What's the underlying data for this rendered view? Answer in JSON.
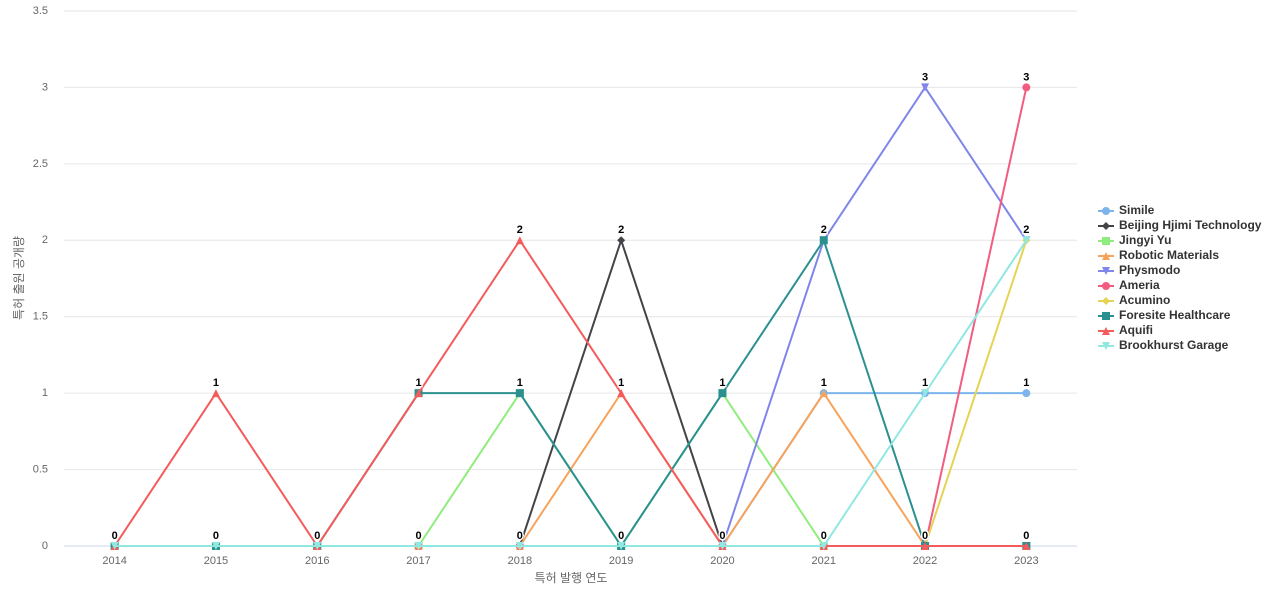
{
  "chart_data": {
    "type": "line",
    "x_label": "특허 발행 연도",
    "y_label": "특허 출원 공개량",
    "categories": [
      "2014",
      "2015",
      "2016",
      "2017",
      "2018",
      "2019",
      "2020",
      "2021",
      "2022",
      "2023"
    ],
    "ylim": [
      0,
      3.5
    ],
    "yticks": [
      0,
      0.5,
      1,
      1.5,
      2,
      2.5,
      3,
      3.5
    ],
    "grid": true,
    "legend": "right",
    "series": [
      {
        "name": "Simile",
        "color": "#7cb5ec",
        "values": [
          0,
          0,
          0,
          0,
          0,
          0,
          0,
          1,
          1,
          1
        ]
      },
      {
        "name": "Beijing Hjimi Technology",
        "color": "#434348",
        "values": [
          0,
          0,
          0,
          0,
          0,
          2,
          0,
          0,
          0,
          0
        ]
      },
      {
        "name": "Jingyi Yu",
        "color": "#90ed7d",
        "values": [
          0,
          0,
          0,
          0,
          1,
          0,
          1,
          0,
          0,
          0
        ]
      },
      {
        "name": "Robotic Materials",
        "color": "#f7a35c",
        "values": [
          0,
          0,
          0,
          0,
          0,
          1,
          0,
          1,
          0,
          0
        ]
      },
      {
        "name": "Physmodo",
        "color": "#8085e9",
        "values": [
          0,
          0,
          0,
          0,
          0,
          0,
          0,
          2,
          3,
          2
        ]
      },
      {
        "name": "Ameria",
        "color": "#f15c80",
        "values": [
          0,
          0,
          0,
          0,
          0,
          0,
          0,
          0,
          0,
          3
        ]
      },
      {
        "name": "Acumino",
        "color": "#e4d354",
        "values": [
          0,
          0,
          0,
          0,
          0,
          0,
          0,
          0,
          0,
          2
        ]
      },
      {
        "name": "Foresite Healthcare",
        "color": "#2b908f",
        "values": [
          0,
          0,
          0,
          1,
          1,
          0,
          1,
          2,
          0,
          0
        ]
      },
      {
        "name": "Aquifi",
        "color": "#f45b5b",
        "values": [
          0,
          1,
          0,
          1,
          2,
          1,
          0,
          0,
          0,
          0
        ]
      },
      {
        "name": "Brookhurst Garage",
        "color": "#91e8e1",
        "values": [
          0,
          0,
          0,
          0,
          0,
          0,
          0,
          0,
          1,
          2
        ]
      }
    ]
  }
}
